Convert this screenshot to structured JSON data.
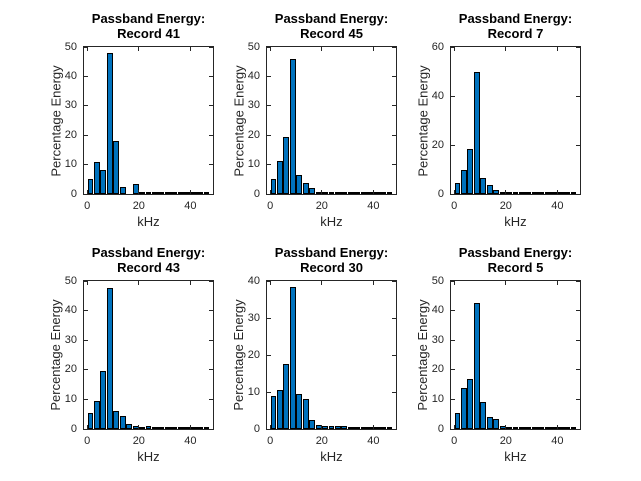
{
  "figure": {
    "background": "#ffffff",
    "bar_face_color": "#0072BD",
    "bar_edge_color": "#000000",
    "axes_color": "#262626",
    "title_color": "#000000"
  },
  "chart_data": [
    {
      "type": "bar",
      "title": "Passband Energy: Record 41",
      "title_lines": [
        "Passband Energy:",
        "Record 41"
      ],
      "xlabel": "kHz",
      "ylabel": "Percentage Energy",
      "xlim": [
        -1.25,
        48.75
      ],
      "ylim": [
        0,
        50
      ],
      "xticks": [
        0,
        20,
        40
      ],
      "yticks": [
        0,
        10,
        20,
        30,
        40,
        50
      ],
      "bin_width_khz": 2.5,
      "x": [
        1.25,
        3.75,
        6.25,
        8.75,
        11.25,
        13.75,
        16.25,
        18.75,
        21.25,
        23.75,
        26.25,
        28.75,
        31.25,
        33.75,
        36.25,
        38.75,
        41.25,
        43.75,
        46.25
      ],
      "values": [
        5,
        11,
        8,
        48,
        18,
        2.3,
        0,
        3.5,
        0.3,
        0.3,
        0.3,
        0.3,
        0.3,
        0.3,
        0.3,
        0.3,
        0.3,
        0.3,
        0.3
      ]
    },
    {
      "type": "bar",
      "title": "Passband Energy: Record 45",
      "title_lines": [
        "Passband Energy:",
        "Record 45"
      ],
      "xlabel": "kHz",
      "ylabel": "Percentage Energy",
      "xlim": [
        -1.25,
        48.75
      ],
      "ylim": [
        0,
        50
      ],
      "xticks": [
        0,
        20,
        40
      ],
      "yticks": [
        0,
        10,
        20,
        30,
        40,
        50
      ],
      "bin_width_khz": 2.5,
      "x": [
        1.25,
        3.75,
        6.25,
        8.75,
        11.25,
        13.75,
        16.25,
        18.75,
        21.25,
        23.75,
        26.25,
        28.75,
        31.25,
        33.75,
        36.25,
        38.75,
        41.25,
        43.75,
        46.25
      ],
      "values": [
        5,
        11.2,
        19.5,
        46,
        6.5,
        3.8,
        2,
        0.7,
        0.6,
        0.7,
        0.3,
        0.25,
        0.25,
        0.25,
        0.25,
        0.3,
        0.25,
        0.2,
        0.2
      ]
    },
    {
      "type": "bar",
      "title": "Passband Energy: Record 7",
      "title_lines": [
        "Passband Energy:",
        "Record 7"
      ],
      "xlabel": "kHz",
      "ylabel": "Percentage Energy",
      "xlim": [
        -1.25,
        48.75
      ],
      "ylim": [
        0,
        60
      ],
      "xticks": [
        0,
        20,
        40
      ],
      "yticks": [
        0,
        20,
        40,
        60
      ],
      "bin_width_khz": 2.5,
      "x": [
        1.25,
        3.75,
        6.25,
        8.75,
        11.25,
        13.75,
        16.25,
        18.75,
        21.25,
        23.75,
        26.25,
        28.75,
        31.25,
        33.75,
        36.25,
        38.75,
        41.25,
        43.75,
        46.25
      ],
      "values": [
        4.5,
        10,
        18.5,
        50,
        6.5,
        3.8,
        1.5,
        0.8,
        0.4,
        0.35,
        0.35,
        0.35,
        0.35,
        0.35,
        0.35,
        0.35,
        0.35,
        0.3,
        0.2
      ]
    },
    {
      "type": "bar",
      "title": "Passband Energy: Record 43",
      "title_lines": [
        "Passband Energy:",
        "Record 43"
      ],
      "xlabel": "kHz",
      "ylabel": "Percentage Energy",
      "xlim": [
        -1.25,
        48.75
      ],
      "ylim": [
        0,
        50
      ],
      "xticks": [
        0,
        20,
        40
      ],
      "yticks": [
        0,
        10,
        20,
        30,
        40,
        50
      ],
      "bin_width_khz": 2.5,
      "x": [
        1.25,
        3.75,
        6.25,
        8.75,
        11.25,
        13.75,
        16.25,
        18.75,
        21.25,
        23.75,
        26.25,
        28.75,
        31.25,
        33.75,
        36.25,
        38.75,
        41.25,
        43.75,
        46.25
      ],
      "values": [
        5.5,
        9.5,
        19.5,
        47.5,
        6,
        4.5,
        1.8,
        1,
        0.8,
        0.9,
        0.5,
        0.5,
        0.6,
        0.5,
        0.5,
        0.6,
        0.5,
        0.5,
        0.2
      ]
    },
    {
      "type": "bar",
      "title": "Passband Energy: Record 30",
      "title_lines": [
        "Passband Energy:",
        "Record 30"
      ],
      "xlabel": "kHz",
      "ylabel": "Percentage Energy",
      "xlim": [
        -1.25,
        48.75
      ],
      "ylim": [
        0,
        40
      ],
      "xticks": [
        0,
        20,
        40
      ],
      "yticks": [
        0,
        10,
        20,
        30,
        40
      ],
      "bin_width_khz": 2.5,
      "x": [
        1.25,
        3.75,
        6.25,
        8.75,
        11.25,
        13.75,
        16.25,
        18.75,
        21.25,
        23.75,
        26.25,
        28.75,
        31.25,
        33.75,
        36.25,
        38.75,
        41.25,
        43.75,
        46.25
      ],
      "values": [
        9,
        10.5,
        17.5,
        38.5,
        9.5,
        8,
        2.5,
        1,
        0.9,
        0.8,
        0.8,
        0.7,
        0.6,
        0.5,
        0.5,
        0.5,
        0.5,
        0.5,
        0.3
      ]
    },
    {
      "type": "bar",
      "title": "Passband Energy: Record 5",
      "title_lines": [
        "Passband Energy:",
        "Record 5"
      ],
      "xlabel": "kHz",
      "ylabel": "Percentage Energy",
      "xlim": [
        -1.25,
        48.75
      ],
      "ylim": [
        0,
        50
      ],
      "xticks": [
        0,
        20,
        40
      ],
      "yticks": [
        0,
        10,
        20,
        30,
        40,
        50
      ],
      "bin_width_khz": 2.5,
      "x": [
        1.25,
        3.75,
        6.25,
        8.75,
        11.25,
        13.75,
        16.25,
        18.75,
        21.25,
        23.75,
        26.25,
        28.75,
        31.25,
        33.75,
        36.25,
        38.75,
        41.25,
        43.75,
        46.25
      ],
      "values": [
        5.5,
        14,
        17,
        42.5,
        9,
        4,
        3.5,
        0.9,
        0.6,
        0.6,
        0.6,
        0.5,
        0.6,
        0.6,
        0.6,
        0.5,
        0.3,
        0.2,
        0.1
      ]
    }
  ]
}
